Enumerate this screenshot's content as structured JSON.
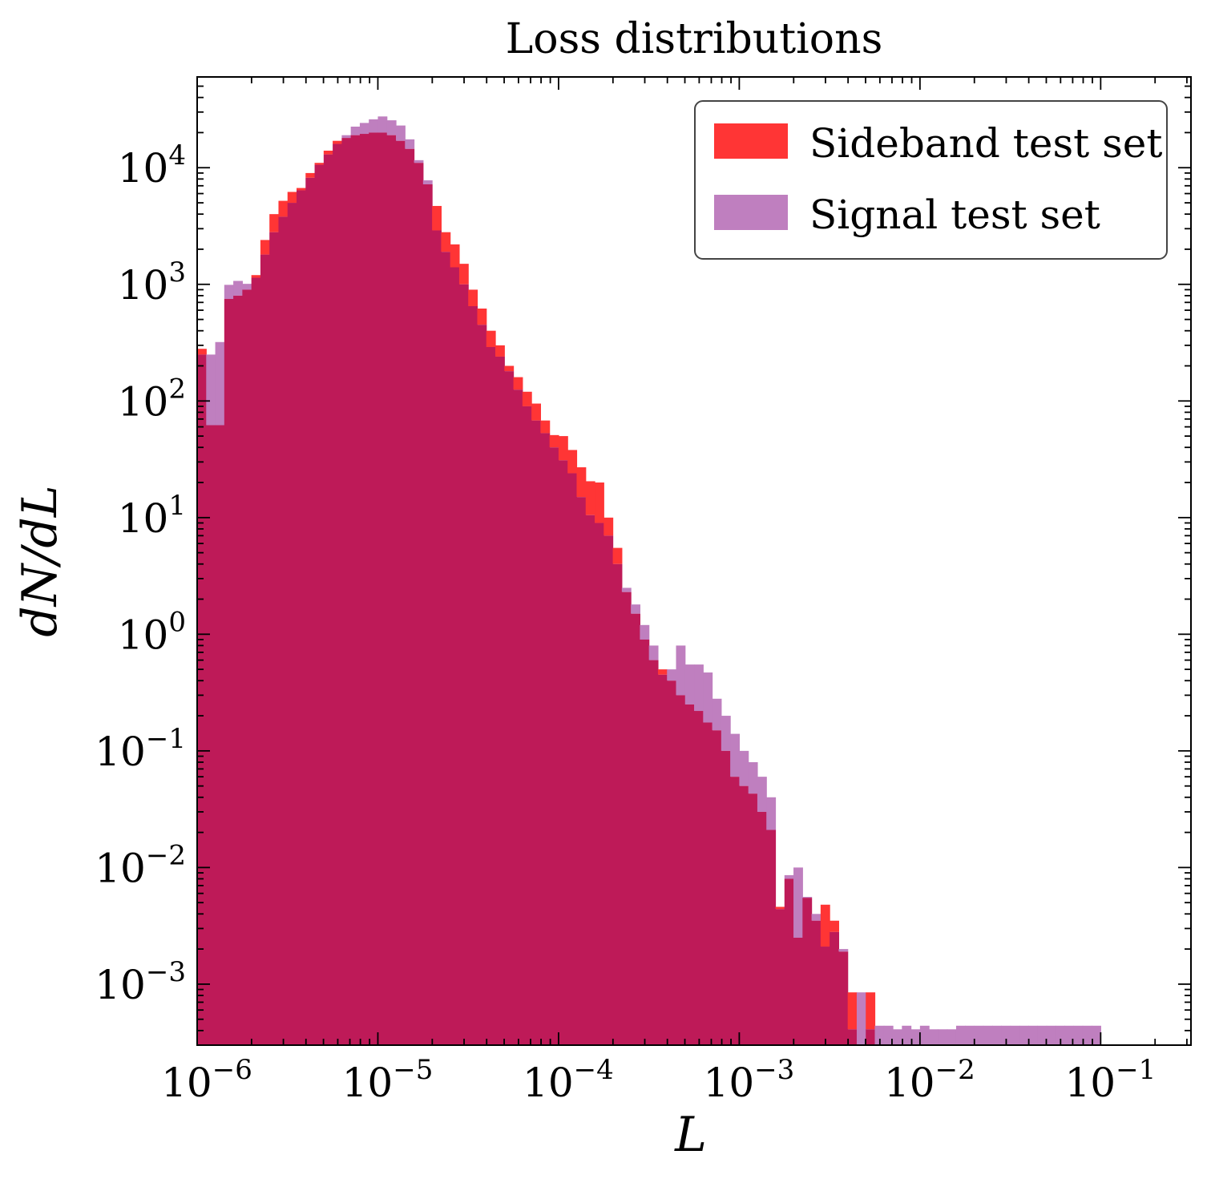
{
  "chart_data": {
    "type": "histogram",
    "title": "Loss distributions",
    "xlabel": "L",
    "ylabel": "dN/dL",
    "xscale": "log",
    "yscale": "log",
    "xlim": [
      1e-06,
      0.316
    ],
    "ylim": [
      0.0003,
      60000
    ],
    "x_ticks": [
      {
        "base": "10",
        "exp": "−6",
        "value": 1e-06
      },
      {
        "base": "10",
        "exp": "−5",
        "value": 1e-05
      },
      {
        "base": "10",
        "exp": "−4",
        "value": 0.0001
      },
      {
        "base": "10",
        "exp": "−3",
        "value": 0.001
      },
      {
        "base": "10",
        "exp": "−2",
        "value": 0.01
      },
      {
        "base": "10",
        "exp": "−1",
        "value": 0.1
      }
    ],
    "y_ticks": [
      {
        "base": "10",
        "exp": "4",
        "value": 10000
      },
      {
        "base": "10",
        "exp": "3",
        "value": 1000
      },
      {
        "base": "10",
        "exp": "2",
        "value": 100
      },
      {
        "base": "10",
        "exp": "1",
        "value": 10
      },
      {
        "base": "10",
        "exp": "0",
        "value": 1
      },
      {
        "base": "10",
        "exp": "−1",
        "value": 0.1
      },
      {
        "base": "10",
        "exp": "−2",
        "value": 0.01
      },
      {
        "base": "10",
        "exp": "−3",
        "value": 0.001
      }
    ],
    "bins": {
      "log10_start": -6,
      "log10_step": 0.05,
      "count": 100
    },
    "legend": {
      "position": "top-right"
    },
    "series": [
      {
        "name": "Sideband test set",
        "color": "#ff3535",
        "values": [
          280,
          62,
          62,
          750,
          800,
          900,
          1200,
          2400,
          4000,
          5200,
          6200,
          6700,
          9000,
          11000,
          14000,
          17000,
          18000,
          19000,
          19500,
          20000,
          20000,
          19000,
          17000,
          14500,
          11000,
          7200,
          4700,
          2800,
          2200,
          1500,
          900,
          620,
          400,
          300,
          200,
          160,
          120,
          95,
          68,
          51,
          50,
          38,
          27,
          20.5,
          20,
          10,
          5.5,
          2.3,
          1.5,
          0.9,
          0.6,
          0.5,
          0.4,
          0.3,
          0.25,
          0.22,
          0.175,
          0.15,
          0.1,
          0.06,
          0.05,
          0.043,
          0.03,
          0.021,
          0.0046,
          0.008,
          0.0025,
          0.0055,
          0.0035,
          0.0048,
          0.0035,
          0.0019,
          0.00085,
          0,
          0.00085,
          0,
          0,
          0,
          0,
          0,
          0,
          0,
          0,
          0,
          0,
          0,
          0,
          0,
          0,
          0,
          0,
          0,
          0,
          0,
          0,
          0,
          0,
          0,
          0,
          0
        ],
        "values_note": ""
      },
      {
        "name": "Signal test set",
        "color": "#bf7fbf",
        "values": [
          250,
          250,
          320,
          990,
          1070,
          1010,
          1140,
          1800,
          2800,
          3800,
          5000,
          6400,
          8200,
          10600,
          13000,
          16000,
          19000,
          22500,
          24200,
          26000,
          27500,
          25500,
          23000,
          17500,
          11600,
          7800,
          2900,
          1900,
          1400,
          1000,
          650,
          450,
          290,
          240,
          180,
          125,
          90,
          68,
          53,
          40,
          31,
          24,
          15,
          10.5,
          9,
          7,
          4,
          2.5,
          1.8,
          1.2,
          0.8,
          0.45,
          0.5,
          0.8,
          0.55,
          0.55,
          0.47,
          0.28,
          0.2,
          0.14,
          0.1,
          0.08,
          0.06,
          0.04,
          0.0044,
          0.0086,
          0.01,
          0.0056,
          0.004,
          0.0021,
          0.0028,
          0.002,
          0.00041,
          0.00085,
          0.00041,
          0.00044,
          0.00044,
          0.00041,
          0.00044,
          0.00041,
          0.00044,
          0.00041,
          0.00041,
          0.00041,
          0.00044,
          0.00044,
          0.00044,
          0.00044,
          0.00044,
          0.00044,
          0.00044,
          0.00044,
          0.00044,
          0.00044,
          0.00044,
          0.00044,
          0.00044,
          0.00044,
          0.00044,
          0.00044
        ]
      }
    ],
    "overlap_color": "#be1a58"
  },
  "chart_data_extra": {}
}
